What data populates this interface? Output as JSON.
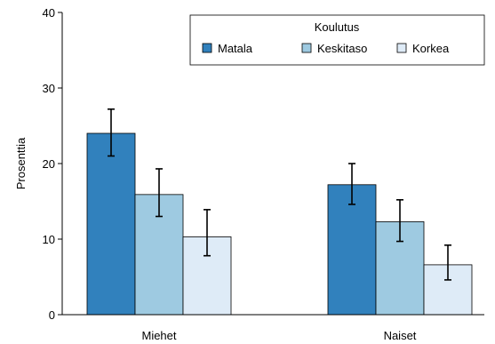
{
  "chart_data": {
    "type": "bar",
    "title": "",
    "xlabel": "",
    "ylabel": "Prosenttia",
    "ylim": [
      0,
      40
    ],
    "yticks": [
      0,
      10,
      20,
      30,
      40
    ],
    "grid": false,
    "categories": [
      "Miehet",
      "Naiset"
    ],
    "legend": {
      "title": "Koulutus",
      "placement": "top-right"
    },
    "series": [
      {
        "name": "Matala",
        "color": "#3181bd",
        "values": [
          24.0,
          17.2
        ],
        "error_low": [
          21.0,
          14.6
        ],
        "error_high": [
          27.2,
          20.0
        ]
      },
      {
        "name": "Keskitaso",
        "color": "#9ecae1",
        "values": [
          15.9,
          12.3
        ],
        "error_low": [
          13.0,
          9.7
        ],
        "error_high": [
          19.3,
          15.2
        ]
      },
      {
        "name": "Korkea",
        "color": "#deebf7",
        "values": [
          10.3,
          6.6
        ],
        "error_low": [
          7.8,
          4.6
        ],
        "error_high": [
          13.9,
          9.2
        ]
      }
    ]
  }
}
